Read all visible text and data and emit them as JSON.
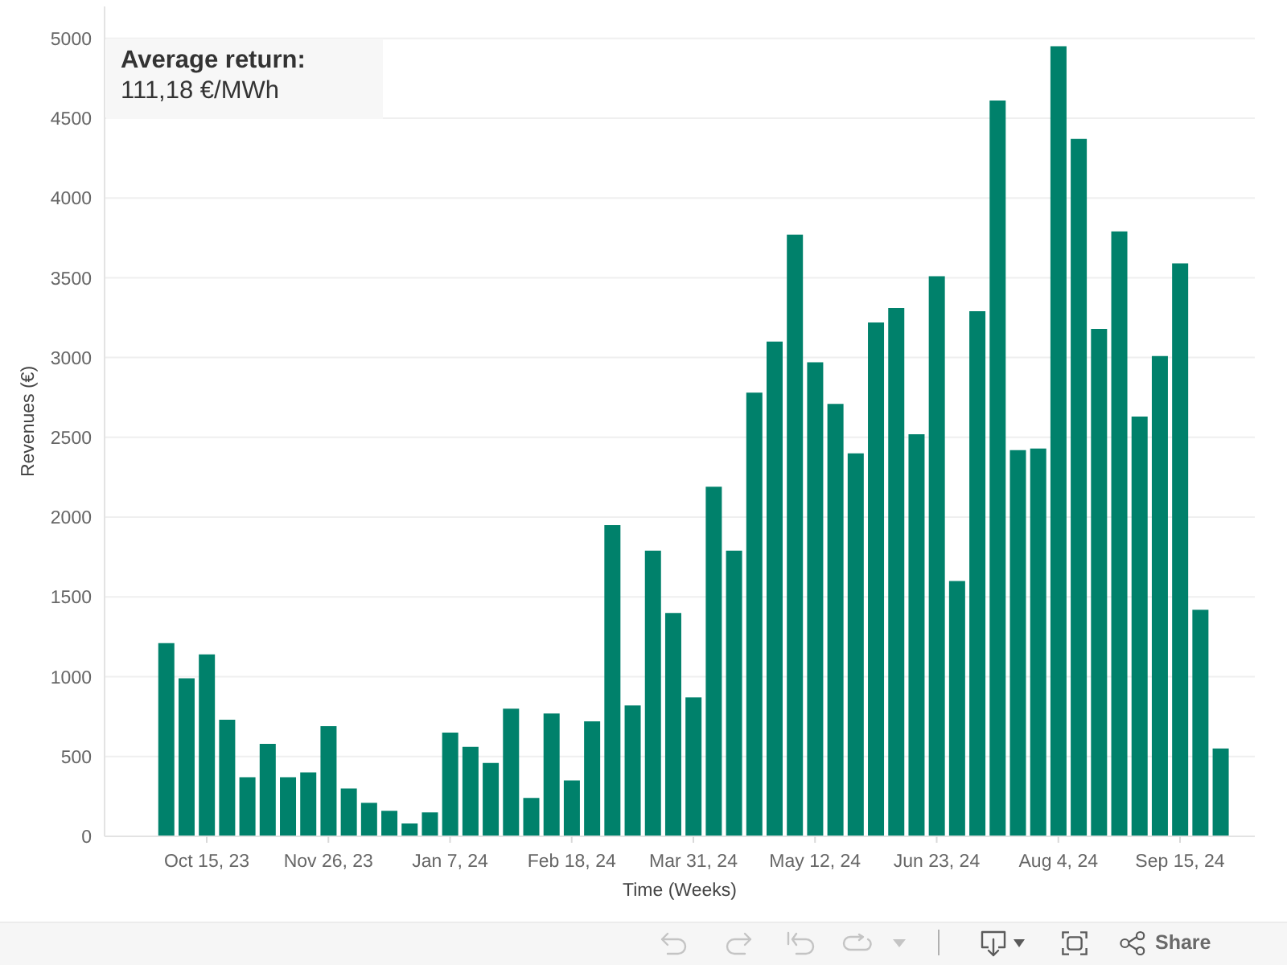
{
  "chart_data": {
    "type": "bar",
    "xlabel": "Time (Weeks)",
    "ylabel": "Revenues (€)",
    "categories": [
      null,
      null,
      "Oct 15, 23",
      null,
      null,
      null,
      null,
      null,
      "Nov 26, 23",
      null,
      null,
      null,
      null,
      null,
      "Jan 7, 24",
      null,
      null,
      null,
      null,
      null,
      "Feb 18, 24",
      null,
      null,
      null,
      null,
      null,
      "Mar 31, 24",
      null,
      null,
      null,
      null,
      null,
      "May 12, 24",
      null,
      null,
      null,
      null,
      null,
      "Jun 23, 24",
      null,
      null,
      null,
      null,
      null,
      "Aug 4, 24",
      null,
      null,
      null,
      null,
      null,
      "Sep 15, 24",
      null,
      null
    ],
    "values": [
      1210,
      990,
      1140,
      730,
      370,
      580,
      370,
      400,
      690,
      300,
      210,
      160,
      80,
      150,
      650,
      560,
      460,
      800,
      240,
      770,
      350,
      720,
      1950,
      820,
      1790,
      1400,
      870,
      2190,
      1790,
      2780,
      3100,
      3770,
      2970,
      2710,
      2400,
      3220,
      3310,
      2520,
      3510,
      1600,
      3290,
      4610,
      2420,
      2430,
      4950,
      4370,
      3180,
      3790,
      2630,
      3010,
      3590,
      1420,
      550
    ],
    "color": "#00816b",
    "ylim": [
      0,
      5200
    ],
    "yticks": [
      0,
      500,
      1000,
      1500,
      2000,
      2500,
      3000,
      3500,
      4000,
      4500,
      5000
    ],
    "grid": "y",
    "annotations": [
      "Average return:",
      "111,18 €/MWh",
      "Share"
    ]
  }
}
